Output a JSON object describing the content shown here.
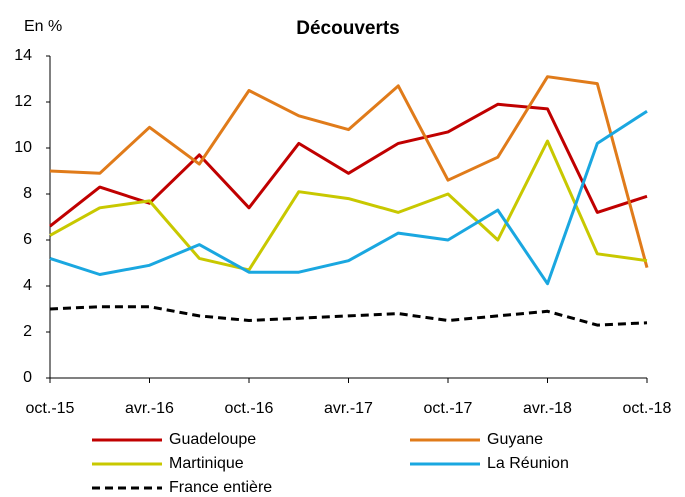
{
  "chart_data": {
    "type": "line",
    "title": "Découverts",
    "y_label": "En %",
    "categories": [
      "oct.-15",
      null,
      "avr.-16",
      null,
      "oct.-16",
      null,
      "avr.-17",
      null,
      "oct.-17",
      null,
      "avr.-18",
      null,
      "oct.-18"
    ],
    "series": [
      {
        "name": "Guadeloupe",
        "color": "#c00000",
        "style": "solid",
        "values": [
          6.6,
          8.3,
          7.6,
          9.7,
          7.4,
          10.2,
          8.9,
          10.2,
          10.7,
          11.9,
          11.7,
          7.2,
          7.9
        ]
      },
      {
        "name": "Guyane",
        "color": "#e07b1a",
        "style": "solid",
        "values": [
          9.0,
          8.9,
          10.9,
          9.3,
          12.5,
          11.4,
          10.8,
          12.7,
          8.6,
          9.6,
          13.1,
          12.8,
          4.8
        ]
      },
      {
        "name": "Martinique",
        "color": "#c8c800",
        "style": "solid",
        "values": [
          6.2,
          7.4,
          7.7,
          5.2,
          4.7,
          8.1,
          7.8,
          7.2,
          8.0,
          6.0,
          10.3,
          5.4,
          5.1
        ]
      },
      {
        "name": "La Réunion",
        "color": "#1aa7e0",
        "style": "solid",
        "values": [
          5.2,
          4.5,
          4.9,
          5.8,
          4.6,
          4.6,
          5.1,
          6.3,
          6.0,
          7.3,
          4.1,
          10.2,
          11.6
        ]
      },
      {
        "name": "France entière",
        "color": "#000000",
        "style": "dashed",
        "values": [
          3.0,
          3.1,
          3.1,
          2.7,
          2.5,
          2.6,
          2.7,
          2.8,
          2.5,
          2.7,
          2.9,
          2.3,
          2.4
        ]
      }
    ],
    "ylim": [
      0,
      14
    ],
    "yticks": [
      0,
      2,
      4,
      6,
      8,
      10,
      12,
      14
    ],
    "grid": false,
    "legend": "bottom"
  }
}
